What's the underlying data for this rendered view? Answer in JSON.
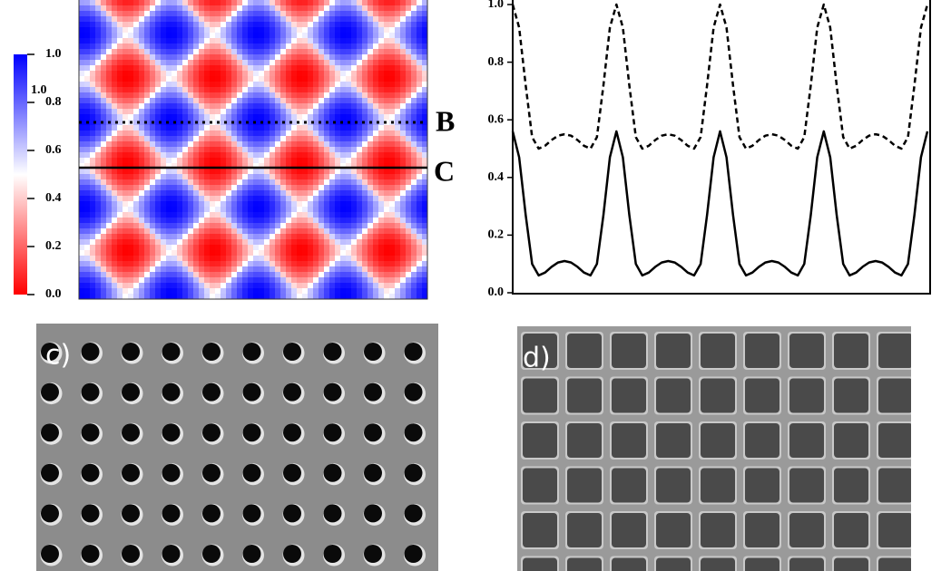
{
  "chart_data": [
    {
      "type": "heatmap",
      "colorscale": [
        "#ff0000",
        "#ffffff",
        "#0000ff"
      ],
      "clim": [
        0,
        1.0
      ],
      "cticks": [
        0,
        {
          "value": 0.2,
          "label": "0.2"
        },
        {
          "value": 0.4,
          "label": "0.4"
        },
        {
          "value": 0.6,
          "label": "0.6"
        },
        {
          "value": 0.8,
          "label": "0.8"
        },
        {
          "value": 1.0,
          "label": "1.0"
        }
      ],
      "cticks_labels_zero": "0.0",
      "edge_label": "1.0",
      "annotations": [
        "B",
        "C"
      ]
    },
    {
      "type": "line",
      "x": [
        0,
        0.0625,
        0.125,
        0.1875,
        0.25,
        0.3125,
        0.375,
        0.4375,
        0.5,
        0.5625,
        0.625,
        0.6875,
        0.75,
        0.8125,
        0.875,
        0.9375,
        1,
        1.0625,
        1.125,
        1.1875,
        1.25,
        1.3125,
        1.375,
        1.4375,
        1.5,
        1.5625,
        1.625,
        1.6875,
        1.75,
        1.8125,
        1.875,
        1.9375,
        2,
        2.0625,
        2.125,
        2.1875,
        2.25,
        2.3125,
        2.375,
        2.4375,
        2.5,
        2.5625,
        2.625,
        2.6875,
        2.75,
        2.8125,
        2.875,
        2.9375,
        3,
        3.0625,
        3.125,
        3.1875,
        3.25,
        3.3125,
        3.375,
        3.4375,
        3.5,
        3.5625,
        3.625,
        3.6875,
        3.75,
        3.8125,
        3.875,
        3.9375,
        4
      ],
      "xlim": [
        0,
        4
      ],
      "ylim": [
        0,
        1.0
      ],
      "yticks": [
        {
          "value": 0,
          "label": "0.0"
        },
        {
          "value": 0.2,
          "label": "0.2"
        },
        {
          "value": 0.4,
          "label": "0.4"
        },
        {
          "value": 0.6,
          "label": "0.6"
        },
        {
          "value": 0.8,
          "label": "0.8"
        },
        {
          "value": 1.0,
          "label": "1.0"
        }
      ],
      "series": [
        {
          "color": "#000000",
          "dash": true,
          "values": [
            1.0,
            0.92,
            0.72,
            0.54,
            0.5,
            0.51,
            0.53,
            0.545,
            0.55,
            0.545,
            0.53,
            0.51,
            0.5,
            0.54,
            0.72,
            0.92,
            1.0,
            0.92,
            0.72,
            0.54,
            0.5,
            0.51,
            0.53,
            0.545,
            0.55,
            0.545,
            0.53,
            0.51,
            0.5,
            0.54,
            0.72,
            0.92,
            1.0,
            0.92,
            0.72,
            0.54,
            0.5,
            0.51,
            0.53,
            0.545,
            0.55,
            0.545,
            0.53,
            0.51,
            0.5,
            0.54,
            0.72,
            0.92,
            1.0,
            0.92,
            0.72,
            0.54,
            0.5,
            0.51,
            0.53,
            0.545,
            0.55,
            0.545,
            0.53,
            0.51,
            0.5,
            0.54,
            0.72,
            0.92,
            1.0
          ]
        },
        {
          "color": "#000000",
          "dash": false,
          "values": [
            0.56,
            0.47,
            0.27,
            0.1,
            0.06,
            0.07,
            0.09,
            0.105,
            0.11,
            0.105,
            0.09,
            0.07,
            0.06,
            0.1,
            0.27,
            0.47,
            0.56,
            0.47,
            0.27,
            0.1,
            0.06,
            0.07,
            0.09,
            0.105,
            0.11,
            0.105,
            0.09,
            0.07,
            0.06,
            0.1,
            0.27,
            0.47,
            0.56,
            0.47,
            0.27,
            0.1,
            0.06,
            0.07,
            0.09,
            0.105,
            0.11,
            0.105,
            0.09,
            0.07,
            0.06,
            0.1,
            0.27,
            0.47,
            0.56,
            0.47,
            0.27,
            0.1,
            0.06,
            0.07,
            0.09,
            0.105,
            0.11,
            0.105,
            0.09,
            0.07,
            0.06,
            0.1,
            0.27,
            0.47,
            0.56
          ]
        }
      ]
    }
  ],
  "images": [
    {
      "label": "c)"
    },
    {
      "label": "d)"
    }
  ]
}
